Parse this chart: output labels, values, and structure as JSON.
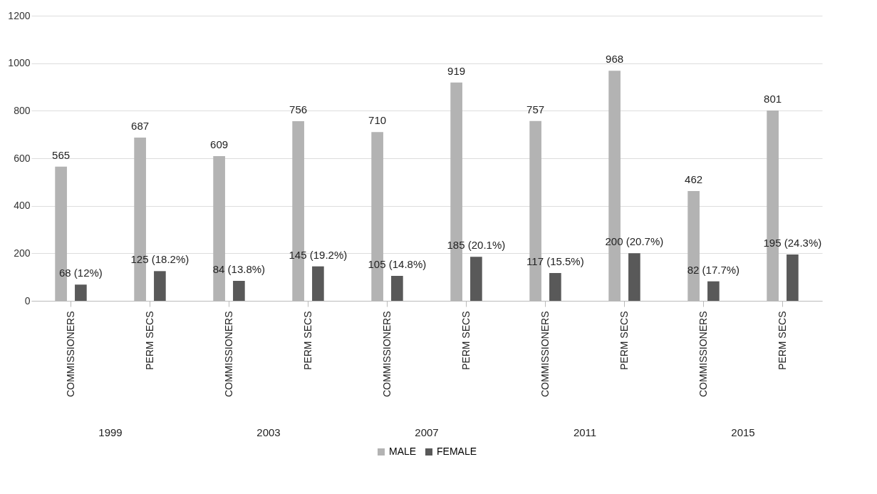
{
  "chart_data": {
    "type": "bar",
    "categories": [
      "COMMISSIONERS",
      "PERM SECS",
      "COMMISSIONERS",
      "PERM SECS",
      "COMMISSIONERS",
      "PERM SECS",
      "COMMISSIONERS",
      "PERM SECS",
      "COMMISSIONERS",
      "PERM SECS"
    ],
    "series": [
      {
        "name": "MALE",
        "color": "#b3b3b3",
        "values": [
          565,
          687,
          609,
          756,
          710,
          919,
          757,
          968,
          462,
          801
        ],
        "value_labels": [
          "565",
          "687",
          "609",
          "756",
          "710",
          "919",
          "757",
          "968",
          "462",
          "801"
        ]
      },
      {
        "name": "FEMALE",
        "color": "#595959",
        "values": [
          68,
          125,
          84,
          145,
          105,
          185,
          117,
          200,
          82,
          195
        ],
        "value_labels": [
          "68 (12%)",
          "125 (18.2%)",
          "84 (13.8%)",
          "145 (19.2%)",
          "105 (14.8%)",
          "185 (20.1%)",
          "117 (15.5%)",
          "200 (20.7%)",
          "82 (17.7%)",
          "195 (24.3%)"
        ]
      }
    ],
    "annotations": [
      "1999",
      "2003",
      "2007",
      "2011",
      "2015"
    ],
    "ylim": [
      0,
      1200
    ],
    "yticks": [
      0,
      200,
      400,
      600,
      800,
      1000,
      1200
    ],
    "grid": "y",
    "legend": "bottom"
  }
}
